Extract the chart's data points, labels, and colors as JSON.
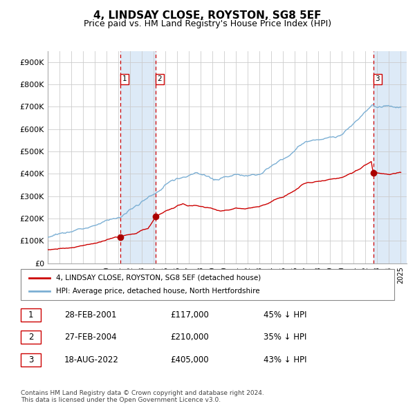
{
  "title": "4, LINDSAY CLOSE, ROYSTON, SG8 5EF",
  "subtitle": "Price paid vs. HM Land Registry's House Price Index (HPI)",
  "title_fontsize": 11,
  "subtitle_fontsize": 9,
  "xlim_start": 1995.0,
  "xlim_end": 2025.5,
  "ylim": [
    0,
    950000
  ],
  "yticks": [
    0,
    100000,
    200000,
    300000,
    400000,
    500000,
    600000,
    700000,
    800000,
    900000
  ],
  "ytick_labels": [
    "£0",
    "£100K",
    "£200K",
    "£300K",
    "£400K",
    "£500K",
    "£600K",
    "£700K",
    "£800K",
    "£900K"
  ],
  "sale_prices": [
    117000,
    210000,
    405000
  ],
  "sale_labels": [
    "1",
    "2",
    "3"
  ],
  "hpi_color": "#7bafd4",
  "price_color": "#cc0000",
  "marker_color": "#aa0000",
  "vline_color": "#cc0000",
  "shade_color": "#ddeaf7",
  "grid_color": "#cccccc",
  "bg_color": "#ffffff",
  "legend_line1": "4, LINDSAY CLOSE, ROYSTON, SG8 5EF (detached house)",
  "legend_line2": "HPI: Average price, detached house, North Hertfordshire",
  "table_rows": [
    [
      "1",
      "28-FEB-2001",
      "£117,000",
      "45% ↓ HPI"
    ],
    [
      "2",
      "27-FEB-2004",
      "£210,000",
      "35% ↓ HPI"
    ],
    [
      "3",
      "18-AUG-2022",
      "£405,000",
      "43% ↓ HPI"
    ]
  ],
  "footer": "Contains HM Land Registry data © Crown copyright and database right 2024.\nThis data is licensed under the Open Government Licence v3.0."
}
